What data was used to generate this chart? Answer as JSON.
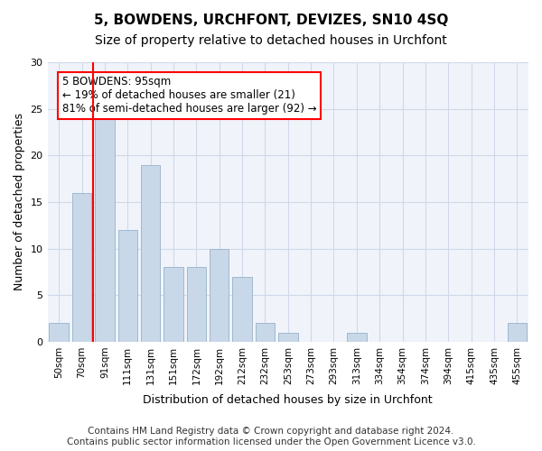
{
  "title": "5, BOWDENS, URCHFONT, DEVIZES, SN10 4SQ",
  "subtitle": "Size of property relative to detached houses in Urchfont",
  "xlabel": "Distribution of detached houses by size in Urchfont",
  "ylabel": "Number of detached properties",
  "bar_color": "#c8d8e8",
  "bar_edgecolor": "#a0b8d0",
  "categories": [
    "50sqm",
    "70sqm",
    "91sqm",
    "111sqm",
    "131sqm",
    "151sqm",
    "172sqm",
    "192sqm",
    "212sqm",
    "232sqm",
    "253sqm",
    "273sqm",
    "293sqm",
    "313sqm",
    "334sqm",
    "354sqm",
    "374sqm",
    "394sqm",
    "415sqm",
    "435sqm",
    "455sqm"
  ],
  "values": [
    2,
    16,
    24,
    12,
    19,
    8,
    8,
    10,
    7,
    2,
    1,
    0,
    0,
    1,
    0,
    0,
    0,
    0,
    0,
    0,
    2
  ],
  "annotation_text": "5 BOWDENS: 95sqm\n← 19% of detached houses are smaller (21)\n81% of semi-detached houses are larger (92) →",
  "annotation_box_edgecolor": "red",
  "redline_xidx": 1.5,
  "annotation_fontsize": 8.5,
  "ylim": [
    0,
    30
  ],
  "yticks": [
    0,
    5,
    10,
    15,
    20,
    25,
    30
  ],
  "grid_color": "#d0d8e8",
  "background_color": "#f0f4fa",
  "footer": "Contains HM Land Registry data © Crown copyright and database right 2024.\nContains public sector information licensed under the Open Government Licence v3.0.",
  "title_fontsize": 11,
  "subtitle_fontsize": 10,
  "xlabel_fontsize": 9,
  "ylabel_fontsize": 9,
  "footer_fontsize": 7.5
}
